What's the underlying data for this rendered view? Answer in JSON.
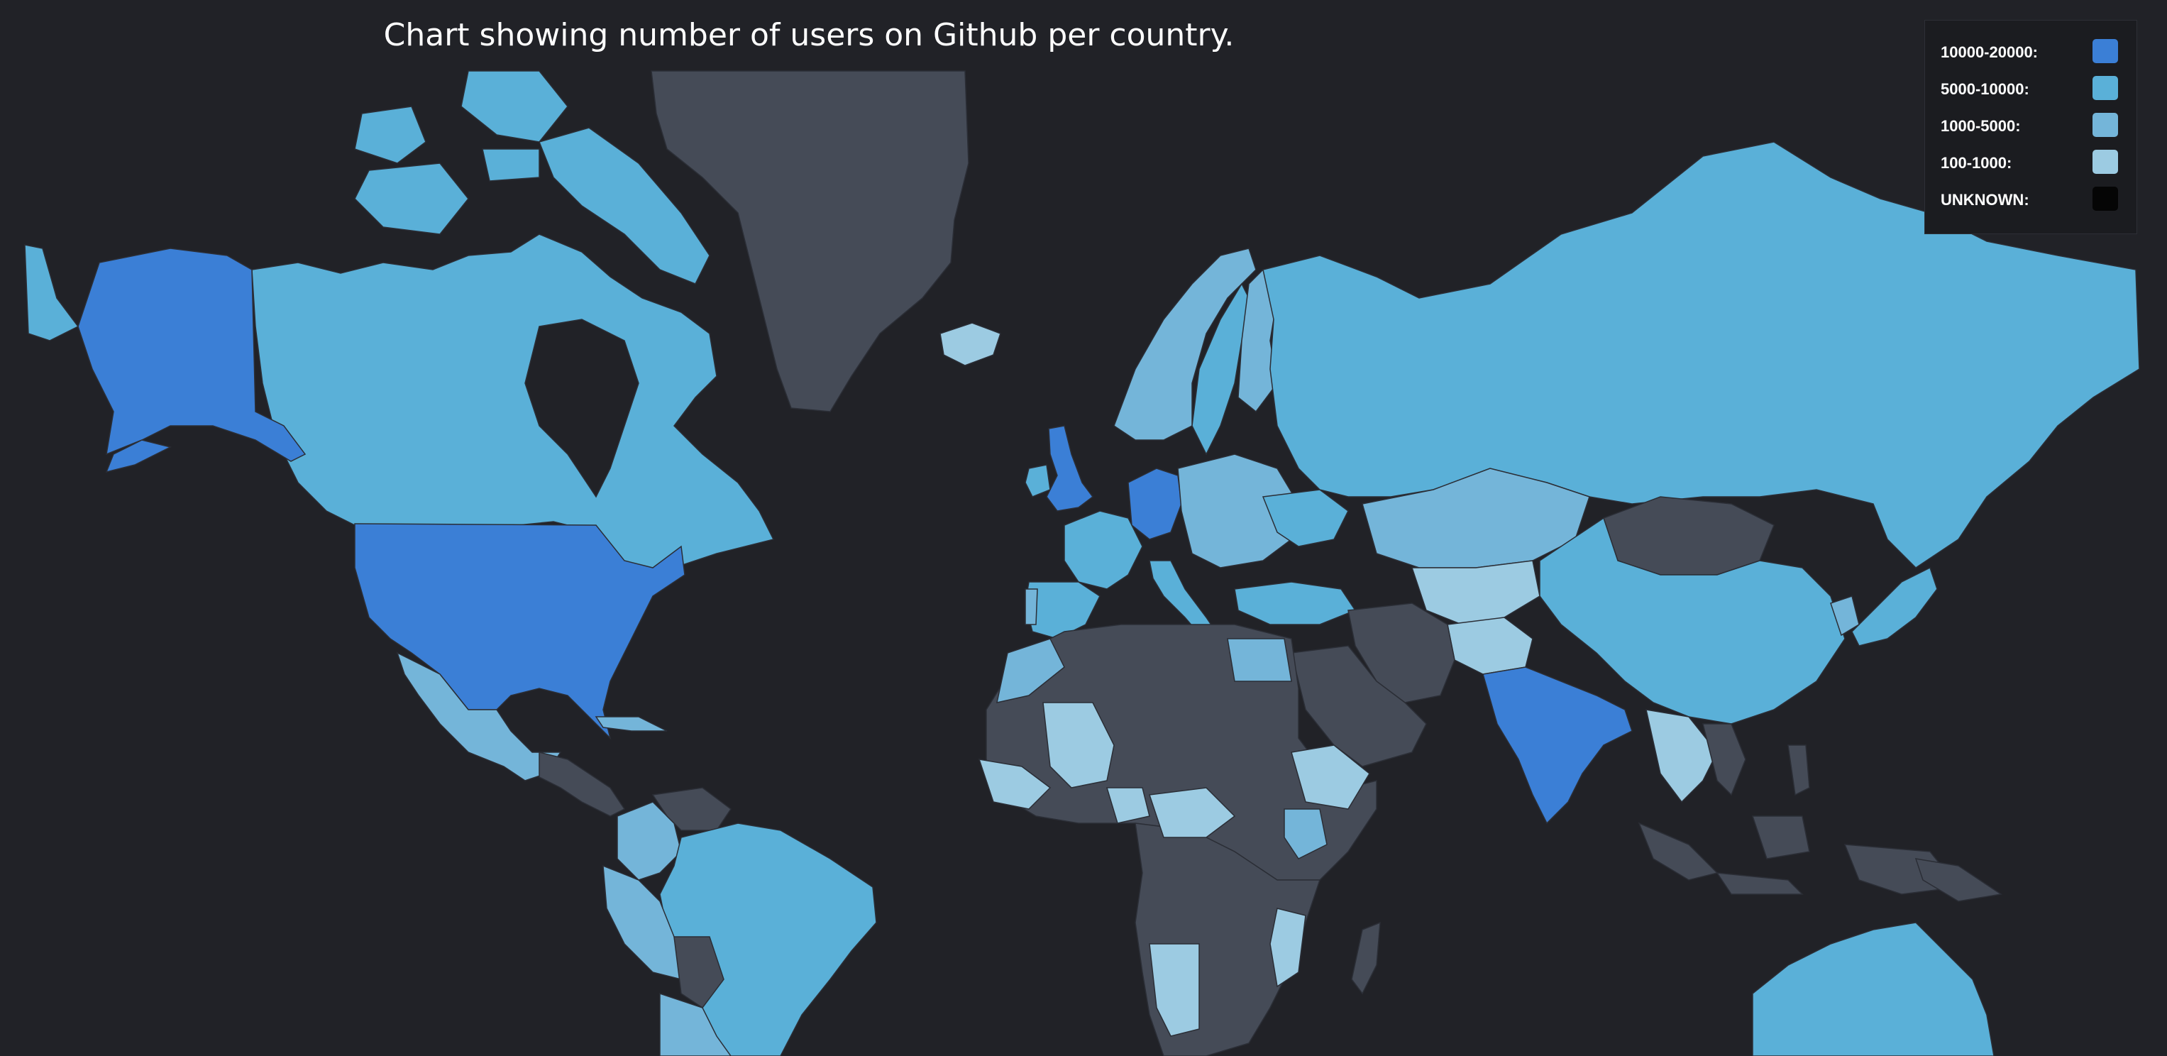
{
  "title": "Chart showing number of users on Github per country.",
  "legend": [
    {
      "label": "10000-20000:",
      "color": "#3b7fd6"
    },
    {
      "label": "5000-10000:",
      "color": "#5ab0d8"
    },
    {
      "label": "1000-5000:",
      "color": "#74b5d9"
    },
    {
      "label": "100-1000:",
      "color": "#9ccbe2"
    },
    {
      "label": "UNKNOWN:",
      "color": "#050505"
    }
  ],
  "colors": {
    "background": "#212227",
    "no_data": "#454b57",
    "tier_10000_20000": "#3b7fd6",
    "tier_5000_10000": "#5ab0d8",
    "tier_1000_5000": "#74b5d9",
    "tier_100_1000": "#9ccbe2"
  },
  "countries": [
    {
      "name": "United States",
      "bin": "10000-20000"
    },
    {
      "name": "Alaska (United States)",
      "bin": "10000-20000"
    },
    {
      "name": "United Kingdom",
      "bin": "10000-20000"
    },
    {
      "name": "Germany",
      "bin": "10000-20000"
    },
    {
      "name": "India",
      "bin": "10000-20000"
    },
    {
      "name": "Canada",
      "bin": "5000-10000"
    },
    {
      "name": "Russia",
      "bin": "5000-10000"
    },
    {
      "name": "China",
      "bin": "5000-10000"
    },
    {
      "name": "Brazil",
      "bin": "5000-10000"
    },
    {
      "name": "Australia",
      "bin": "5000-10000"
    },
    {
      "name": "France",
      "bin": "5000-10000"
    },
    {
      "name": "Mexico",
      "bin": "1000-5000"
    },
    {
      "name": "Kazakhstan",
      "bin": "1000-5000"
    },
    {
      "name": "Egypt",
      "bin": "1000-5000"
    },
    {
      "name": "Mali",
      "bin": "100-1000"
    },
    {
      "name": "Afghanistan",
      "bin": "100-1000"
    },
    {
      "name": "Greenland",
      "bin": "none"
    },
    {
      "name": "Mongolia",
      "bin": "none"
    },
    {
      "name": "Iran",
      "bin": "none"
    },
    {
      "name": "Saudi Arabia",
      "bin": "none"
    },
    {
      "name": "Algeria",
      "bin": "none"
    }
  ]
}
